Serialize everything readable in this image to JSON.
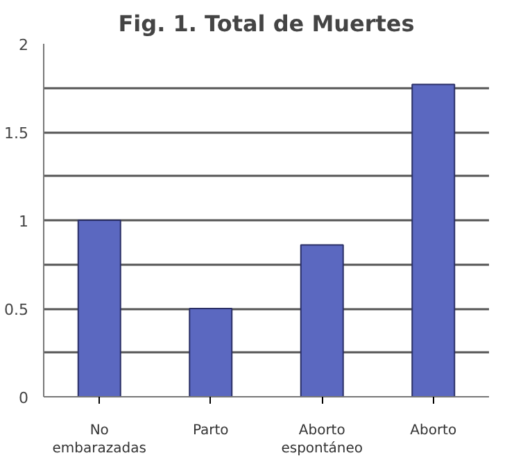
{
  "chart_data": {
    "type": "bar",
    "title": "Fig. 1. Total de Muertes",
    "categories": [
      "No embarazadas",
      "Parto",
      "Aborto espontáneo",
      "Aborto"
    ],
    "values": [
      1,
      0.5,
      0.86,
      1.77
    ],
    "color": "#5b68c0",
    "ylim": [
      0,
      2
    ],
    "yticks": [
      0,
      {
        "value": 0.25,
        "label": null
      },
      0.5,
      {
        "value": 0.75,
        "label": null
      },
      1,
      {
        "value": 1.25,
        "label": null
      },
      1.5,
      {
        "value": 1.75,
        "label": null
      },
      2
    ],
    "grid": "y"
  }
}
